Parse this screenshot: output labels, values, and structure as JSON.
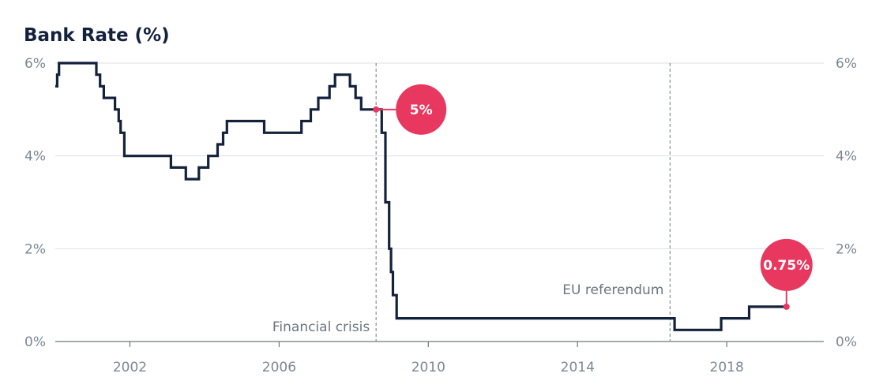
{
  "chart_data": {
    "type": "line",
    "title": "Bank Rate (%)",
    "step": true,
    "xlim": [
      2000.0,
      2020.6
    ],
    "ylim": [
      0,
      6
    ],
    "y_ticks": [
      {
        "value": 0,
        "label": "0%"
      },
      {
        "value": 2,
        "label": "2%"
      },
      {
        "value": 4,
        "label": "4%"
      },
      {
        "value": 6,
        "label": "6%"
      }
    ],
    "x_ticks": [
      {
        "value": 2002,
        "label": "2002"
      },
      {
        "value": 2006,
        "label": "2006"
      },
      {
        "value": 2010,
        "label": "2010"
      },
      {
        "value": 2014,
        "label": "2014"
      },
      {
        "value": 2018,
        "label": "2018"
      }
    ],
    "grid": true,
    "right_axis": true,
    "colors": {
      "series": "#13213d",
      "highlight": "#e8385f"
    },
    "series": [
      {
        "name": "",
        "points": [
          {
            "x": 2000.0,
            "y": 5.5
          },
          {
            "x": 2000.05,
            "y": 5.75
          },
          {
            "x": 2000.1,
            "y": 6.0
          },
          {
            "x": 2001.1,
            "y": 5.75
          },
          {
            "x": 2001.2,
            "y": 5.5
          },
          {
            "x": 2001.3,
            "y": 5.25
          },
          {
            "x": 2001.6,
            "y": 5.0
          },
          {
            "x": 2001.7,
            "y": 4.75
          },
          {
            "x": 2001.75,
            "y": 4.5
          },
          {
            "x": 2001.85,
            "y": 4.0
          },
          {
            "x": 2003.1,
            "y": 3.75
          },
          {
            "x": 2003.5,
            "y": 3.5
          },
          {
            "x": 2003.85,
            "y": 3.75
          },
          {
            "x": 2004.1,
            "y": 4.0
          },
          {
            "x": 2004.35,
            "y": 4.25
          },
          {
            "x": 2004.5,
            "y": 4.5
          },
          {
            "x": 2004.6,
            "y": 4.75
          },
          {
            "x": 2005.6,
            "y": 4.5
          },
          {
            "x": 2006.6,
            "y": 4.75
          },
          {
            "x": 2006.85,
            "y": 5.0
          },
          {
            "x": 2007.05,
            "y": 5.25
          },
          {
            "x": 2007.35,
            "y": 5.5
          },
          {
            "x": 2007.5,
            "y": 5.75
          },
          {
            "x": 2007.9,
            "y": 5.5
          },
          {
            "x": 2008.05,
            "y": 5.25
          },
          {
            "x": 2008.2,
            "y": 5.0
          },
          {
            "x": 2008.75,
            "y": 4.5
          },
          {
            "x": 2008.85,
            "y": 3.0
          },
          {
            "x": 2008.95,
            "y": 2.0
          },
          {
            "x": 2009.0,
            "y": 1.5
          },
          {
            "x": 2009.05,
            "y": 1.0
          },
          {
            "x": 2009.15,
            "y": 0.5
          },
          {
            "x": 2016.6,
            "y": 0.25
          },
          {
            "x": 2017.85,
            "y": 0.5
          },
          {
            "x": 2018.6,
            "y": 0.75
          },
          {
            "x": 2019.6,
            "y": 0.75
          }
        ]
      }
    ],
    "annotations": [
      {
        "x": 2008.6,
        "label": "Financial crisis"
      },
      {
        "x": 2016.48,
        "label": "EU referendum"
      }
    ],
    "highlights": [
      {
        "x": 2008.6,
        "y": 5.0,
        "label": "5%",
        "placement": "right"
      },
      {
        "x": 2019.6,
        "y": 0.75,
        "label": "0.75%",
        "placement": "above"
      }
    ]
  }
}
